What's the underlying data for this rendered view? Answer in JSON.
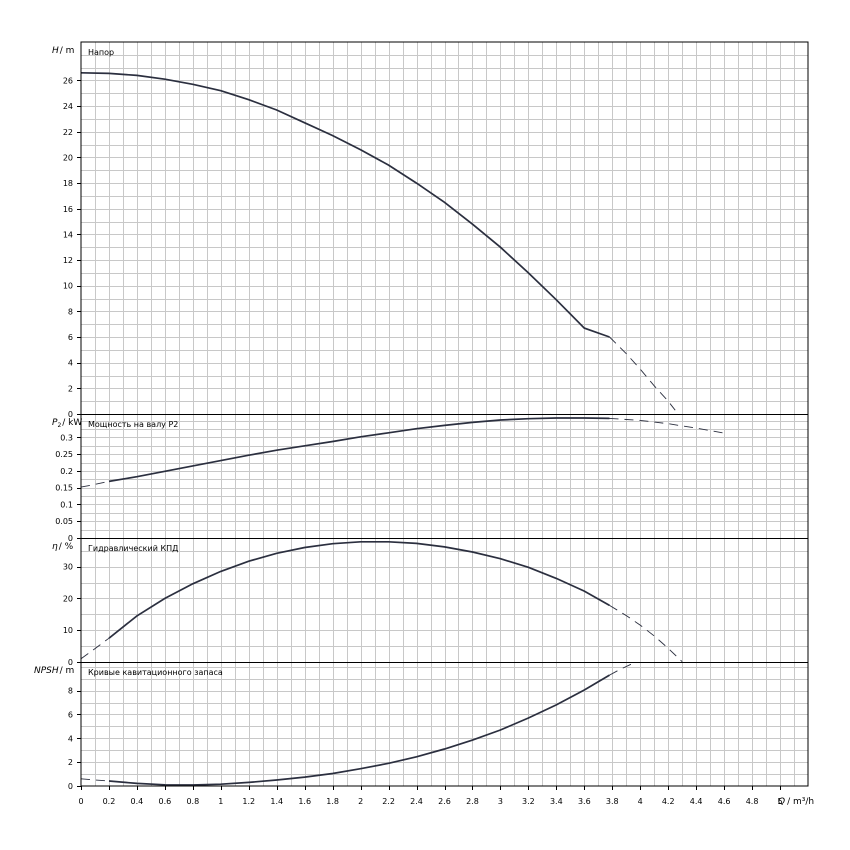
{
  "chart_data": {
    "type": "line",
    "x_axis": {
      "label_var": "Q",
      "label_unit": "/ m³/h",
      "lim": [
        0,
        5.2
      ],
      "ticks": [
        0,
        0.2,
        0.4,
        0.6,
        0.8,
        1,
        1.2,
        1.4,
        1.6,
        1.8,
        2,
        2.2,
        2.4,
        2.6,
        2.8,
        3,
        3.2,
        3.4,
        3.6,
        3.8,
        4,
        4.2,
        4.4,
        4.6,
        4.8,
        5
      ]
    },
    "grid": true,
    "panels": [
      {
        "id": "head",
        "title": "Напор",
        "ylabel_var": "H",
        "ylabel_unit": "/ m",
        "ylim": [
          0,
          29
        ],
        "yticks": [
          0,
          2,
          4,
          6,
          8,
          10,
          12,
          14,
          16,
          18,
          20,
          22,
          24,
          26
        ],
        "ytick_labels": [
          "0",
          "2",
          "4",
          "6",
          "8",
          "10",
          "12",
          "14",
          "16",
          "18",
          "20",
          "22",
          "24",
          "26"
        ],
        "ygrid_step": 1,
        "solid": {
          "x": [
            0,
            0.2,
            0.4,
            0.6,
            0.8,
            1.0,
            1.2,
            1.4,
            1.6,
            1.8,
            2.0,
            2.2,
            2.4,
            2.6,
            2.8,
            3.0,
            3.2,
            3.4,
            3.6,
            3.78
          ],
          "y": [
            26.6,
            26.55,
            26.4,
            26.1,
            25.7,
            25.2,
            24.5,
            23.7,
            22.7,
            21.7,
            20.6,
            19.4,
            18.0,
            16.5,
            14.8,
            13.0,
            11.0,
            8.9,
            6.7,
            6.0
          ]
        },
        "dashed": {
          "x": [
            3.78,
            3.9,
            4.0,
            4.1,
            4.2,
            4.25
          ],
          "y": [
            6.0,
            4.7,
            3.5,
            2.2,
            1.0,
            0.3
          ]
        }
      },
      {
        "id": "power",
        "title": "Мощность на валу P2",
        "ylabel_var": "P",
        "ylabel_sub": "2",
        "ylabel_unit": "/ kW",
        "ylim": [
          0,
          0.37
        ],
        "yticks": [
          0,
          0.05,
          0.1,
          0.15,
          0.2,
          0.25,
          0.3
        ],
        "ytick_labels": [
          "0",
          "0.05",
          "0.1",
          "0.15",
          "0.2",
          "0.25",
          "0.3"
        ],
        "ygrid_step": 0.025,
        "solid": {
          "x": [
            0.2,
            0.4,
            0.6,
            0.8,
            1.0,
            1.2,
            1.4,
            1.6,
            1.8,
            2.0,
            2.2,
            2.4,
            2.6,
            2.8,
            3.0,
            3.2,
            3.4,
            3.6,
            3.78
          ],
          "y": [
            0.169,
            0.183,
            0.199,
            0.215,
            0.231,
            0.247,
            0.262,
            0.275,
            0.288,
            0.302,
            0.314,
            0.326,
            0.336,
            0.345,
            0.352,
            0.356,
            0.358,
            0.358,
            0.357
          ]
        },
        "dashed": {
          "x": [
            0,
            0.1,
            0.2
          ],
          "y": [
            0.152,
            0.16,
            0.169
          ],
          "x2": [
            3.78,
            4.0,
            4.2,
            4.4,
            4.6
          ],
          "y2": [
            0.357,
            0.351,
            0.341,
            0.328,
            0.313
          ]
        }
      },
      {
        "id": "efficiency",
        "title": "Гидравлический КПД",
        "ylabel_var": "η",
        "ylabel_unit": "/ %",
        "ylim": [
          0,
          39
        ],
        "yticks": [
          0,
          10,
          20,
          30
        ],
        "ytick_labels": [
          "0",
          "10",
          "20",
          "30"
        ],
        "ygrid_step": 5,
        "solid": {
          "x": [
            0.2,
            0.4,
            0.6,
            0.8,
            1.0,
            1.2,
            1.4,
            1.6,
            1.8,
            2.0,
            2.2,
            2.4,
            2.6,
            2.8,
            3.0,
            3.2,
            3.4,
            3.6,
            3.78
          ],
          "y": [
            7.5,
            14.5,
            20.0,
            24.6,
            28.5,
            31.7,
            34.2,
            36.0,
            37.2,
            37.8,
            37.8,
            37.3,
            36.2,
            34.6,
            32.5,
            29.8,
            26.3,
            22.3,
            17.8
          ]
        },
        "dashed": {
          "x": [
            0,
            0.1,
            0.2
          ],
          "y": [
            1.0,
            4.2,
            7.5
          ],
          "x2": [
            3.78,
            3.9,
            4.0,
            4.1,
            4.2,
            4.3
          ],
          "y2": [
            17.8,
            14.6,
            11.6,
            8.2,
            4.3,
            0.1
          ]
        }
      },
      {
        "id": "npsh",
        "title": "Кривые кавитационного запаса",
        "ylabel_var": "NPSH",
        "ylabel_unit": "/ m",
        "ylim": [
          0,
          10.4
        ],
        "yticks": [
          0,
          2,
          4,
          6,
          8
        ],
        "ytick_labels": [
          "0",
          "2",
          "4",
          "6",
          "8"
        ],
        "ygrid_step": 1,
        "solid": {
          "x": [
            0.2,
            0.4,
            0.6,
            0.8,
            1.0,
            1.2,
            1.4,
            1.6,
            1.8,
            2.0,
            2.2,
            2.4,
            2.6,
            2.8,
            3.0,
            3.2,
            3.4,
            3.6,
            3.78
          ],
          "y": [
            0.42,
            0.22,
            0.1,
            0.08,
            0.15,
            0.3,
            0.5,
            0.75,
            1.05,
            1.45,
            1.9,
            2.45,
            3.1,
            3.85,
            4.7,
            5.7,
            6.8,
            8.05,
            9.3
          ]
        },
        "dashed": {
          "x": [
            0,
            0.1,
            0.2
          ],
          "y": [
            0.6,
            0.5,
            0.42
          ],
          "x2": [
            3.78,
            3.85,
            3.95
          ],
          "y2": [
            9.3,
            9.75,
            10.3
          ]
        }
      }
    ]
  }
}
